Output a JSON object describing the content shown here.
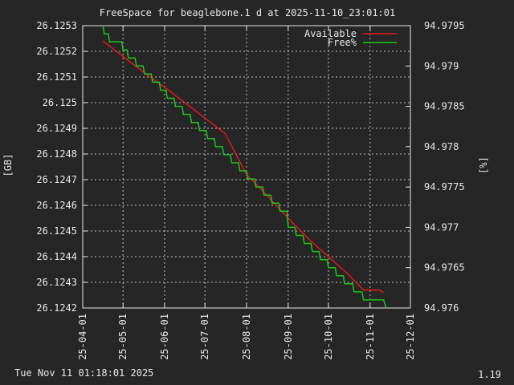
{
  "chart_data": {
    "type": "line",
    "title": "FreeSpace for beaglebone.1 d at 2025-11-10_23:01:01",
    "ylabel_left": "[GB]",
    "ylabel_right": "[%]",
    "xlabel": "",
    "x_ticks": [
      "25-04-01",
      "25-05-01",
      "25-06-01",
      "25-07-01",
      "25-08-01",
      "25-09-01",
      "25-10-01",
      "25-11-01",
      "25-12-01"
    ],
    "xlim": [
      "2025-04-01",
      "2025-12-01"
    ],
    "y_left_ticks": [
      "26.1242",
      "26.1243",
      "26.1244",
      "26.1245",
      "26.1246",
      "26.1247",
      "26.1248",
      "26.1249",
      "26.125",
      "26.1251",
      "26.1252",
      "26.1253"
    ],
    "y_left_ylim": [
      26.1242,
      26.1253
    ],
    "y_right_ticks": [
      "94.976",
      "94.9765",
      "94.977",
      "94.9775",
      "94.978",
      "94.9785",
      "94.979",
      "94.9795"
    ],
    "y_right_ylim": [
      94.976,
      94.9795
    ],
    "grid": true,
    "legend_position": "top-right",
    "series": [
      {
        "name": "Available",
        "axis": "left",
        "color": "#e8161c",
        "points": [
          [
            "2025-04-16",
            26.12524
          ],
          [
            "2025-05-01",
            26.12518
          ],
          [
            "2025-05-16",
            26.12512
          ],
          [
            "2025-06-01",
            26.12506
          ],
          [
            "2025-06-16",
            26.125
          ],
          [
            "2025-07-01",
            26.12494
          ],
          [
            "2025-07-16",
            26.12488
          ],
          [
            "2025-08-01",
            26.12472
          ],
          [
            "2025-08-16",
            26.12464
          ],
          [
            "2025-09-01",
            26.12455
          ],
          [
            "2025-09-16",
            26.12447
          ],
          [
            "2025-10-01",
            26.1244
          ],
          [
            "2025-10-16",
            26.12433
          ],
          [
            "2025-10-27",
            26.12427
          ],
          [
            "2025-11-08",
            26.12427
          ],
          [
            "2025-11-11",
            26.12426
          ]
        ]
      },
      {
        "name": "Free%",
        "axis": "right",
        "color": "#1ec41e",
        "points": [
          [
            "2025-04-16",
            94.9795
          ],
          [
            "2025-04-17",
            94.9794
          ],
          [
            "2025-04-20",
            94.9794
          ],
          [
            "2025-04-21",
            94.9793
          ],
          [
            "2025-04-30",
            94.9793
          ],
          [
            "2025-05-01",
            94.9792
          ],
          [
            "2025-05-04",
            94.9792
          ],
          [
            "2025-05-05",
            94.9791
          ],
          [
            "2025-05-10",
            94.9791
          ],
          [
            "2025-05-11",
            94.979
          ],
          [
            "2025-05-16",
            94.979
          ],
          [
            "2025-05-17",
            94.9789
          ],
          [
            "2025-05-22",
            94.9789
          ],
          [
            "2025-05-23",
            94.9788
          ],
          [
            "2025-05-28",
            94.9788
          ],
          [
            "2025-05-29",
            94.9787
          ],
          [
            "2025-06-02",
            94.9787
          ],
          [
            "2025-06-03",
            94.9786
          ],
          [
            "2025-06-08",
            94.9786
          ],
          [
            "2025-06-09",
            94.9785
          ],
          [
            "2025-06-14",
            94.9785
          ],
          [
            "2025-06-15",
            94.9784
          ],
          [
            "2025-06-20",
            94.9784
          ],
          [
            "2025-06-21",
            94.9783
          ],
          [
            "2025-06-26",
            94.9783
          ],
          [
            "2025-06-27",
            94.9782
          ],
          [
            "2025-07-02",
            94.9782
          ],
          [
            "2025-07-03",
            94.9781
          ],
          [
            "2025-07-08",
            94.9781
          ],
          [
            "2025-07-09",
            94.978
          ],
          [
            "2025-07-14",
            94.978
          ],
          [
            "2025-07-15",
            94.9779
          ],
          [
            "2025-07-20",
            94.9779
          ],
          [
            "2025-07-21",
            94.9778
          ],
          [
            "2025-07-26",
            94.9778
          ],
          [
            "2025-07-27",
            94.9777
          ],
          [
            "2025-08-01",
            94.9777
          ],
          [
            "2025-08-02",
            94.9776
          ],
          [
            "2025-08-07",
            94.9776
          ],
          [
            "2025-08-08",
            94.9775
          ],
          [
            "2025-08-13",
            94.9775
          ],
          [
            "2025-08-14",
            94.9774
          ],
          [
            "2025-08-19",
            94.9774
          ],
          [
            "2025-08-20",
            94.9773
          ],
          [
            "2025-08-25",
            94.9773
          ],
          [
            "2025-08-26",
            94.9772
          ],
          [
            "2025-08-31",
            94.9772
          ],
          [
            "2025-09-01",
            94.977
          ],
          [
            "2025-09-06",
            94.977
          ],
          [
            "2025-09-07",
            94.9769
          ],
          [
            "2025-09-12",
            94.9769
          ],
          [
            "2025-09-13",
            94.9768
          ],
          [
            "2025-09-18",
            94.9768
          ],
          [
            "2025-09-19",
            94.9767
          ],
          [
            "2025-09-24",
            94.9767
          ],
          [
            "2025-09-25",
            94.9766
          ],
          [
            "2025-09-30",
            94.9766
          ],
          [
            "2025-10-01",
            94.9765
          ],
          [
            "2025-10-06",
            94.9765
          ],
          [
            "2025-10-07",
            94.9764
          ],
          [
            "2025-10-12",
            94.9764
          ],
          [
            "2025-10-13",
            94.9763
          ],
          [
            "2025-10-19",
            94.9763
          ],
          [
            "2025-10-20",
            94.9762
          ],
          [
            "2025-10-26",
            94.9762
          ],
          [
            "2025-10-27",
            94.9761
          ],
          [
            "2025-11-11",
            94.9761
          ],
          [
            "2025-11-13",
            94.976
          ]
        ]
      }
    ]
  },
  "footer": {
    "timestamp": "Tue Nov 11 01:18:01 2025",
    "version": "1.19"
  }
}
